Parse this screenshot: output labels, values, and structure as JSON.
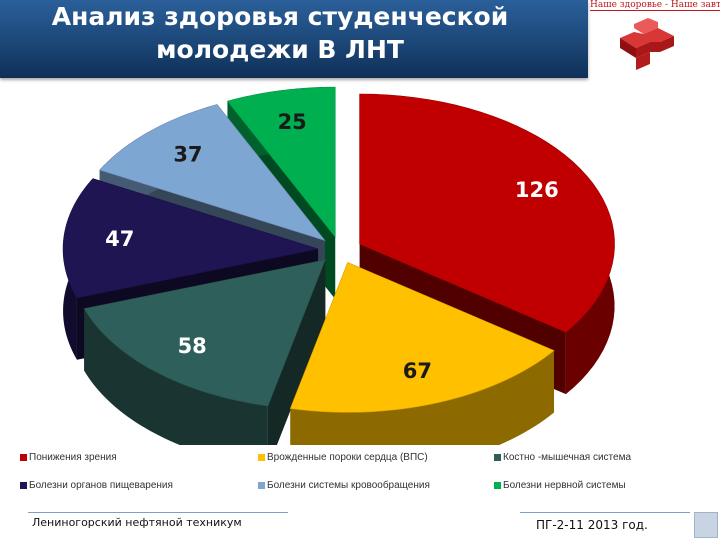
{
  "slide": {
    "title": "Анализ здоровья студенческой\nмолодежи В ЛНТ",
    "logo_text": "Наше здоровье - Наше завтра",
    "footer_left": "Лениногорский нефтяной техникум",
    "footer_right": "ПГ-2-11   2013 год."
  },
  "chart_data": {
    "type": "pie",
    "title": "",
    "style": "3d-exploded",
    "legend_position": "bottom",
    "slices": [
      {
        "label": "Понижения зрения",
        "value": 126,
        "color": "#c00000"
      },
      {
        "label": "Врожденные пороки сердца (ВПС)",
        "value": 67,
        "color": "#ffc000"
      },
      {
        "label": "Костно -мышечная система",
        "value": 58,
        "color": "#2f5f5a"
      },
      {
        "label": "Болезни органов пищеварения",
        "value": 47,
        "color": "#1f1552"
      },
      {
        "label": "Болезни системы кровообращения",
        "value": 37,
        "color": "#7ea6d2"
      },
      {
        "label": "Болезни нервной системы",
        "value": 25,
        "color": "#00b050"
      }
    ]
  }
}
